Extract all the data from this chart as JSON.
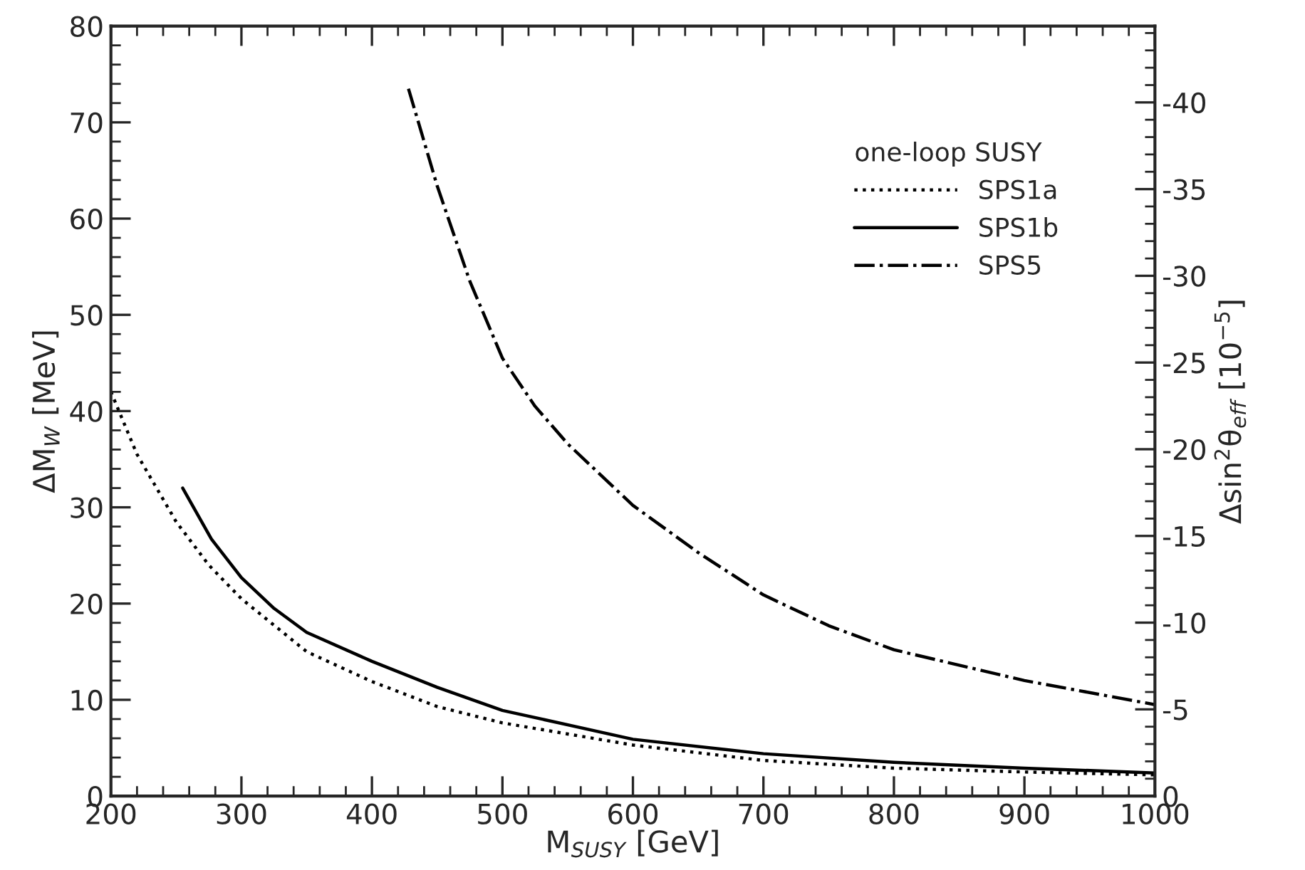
{
  "chart_data": {
    "type": "line",
    "xlabel": "M$_{SUSY}$ [GeV]",
    "ylabel": "ΔM$_{W}$ [MeV]",
    "y2label": "Δsin$^{2}$θ$_{eff}$ [10$^{−5}$]",
    "legend_title": "one-loop SUSY",
    "legend": "top right",
    "grid": false,
    "xlim": [
      200,
      1000
    ],
    "ylim": [
      0,
      80
    ],
    "y2lim": [
      0,
      -44.4
    ],
    "xticks": [
      200,
      {
        "value": 220,
        "label": null
      },
      {
        "value": 240,
        "label": null
      },
      {
        "value": 260,
        "label": null
      },
      {
        "value": 280,
        "label": null
      },
      300,
      {
        "value": 320,
        "label": null
      },
      {
        "value": 340,
        "label": null
      },
      {
        "value": 360,
        "label": null
      },
      {
        "value": 380,
        "label": null
      },
      400,
      {
        "value": 420,
        "label": null
      },
      {
        "value": 440,
        "label": null
      },
      {
        "value": 460,
        "label": null
      },
      {
        "value": 480,
        "label": null
      },
      500,
      {
        "value": 520,
        "label": null
      },
      {
        "value": 540,
        "label": null
      },
      {
        "value": 560,
        "label": null
      },
      {
        "value": 580,
        "label": null
      },
      600,
      {
        "value": 620,
        "label": null
      },
      {
        "value": 640,
        "label": null
      },
      {
        "value": 660,
        "label": null
      },
      {
        "value": 680,
        "label": null
      },
      700,
      {
        "value": 720,
        "label": null
      },
      {
        "value": 740,
        "label": null
      },
      {
        "value": 760,
        "label": null
      },
      {
        "value": 780,
        "label": null
      },
      800,
      {
        "value": 820,
        "label": null
      },
      {
        "value": 840,
        "label": null
      },
      {
        "value": 860,
        "label": null
      },
      {
        "value": 880,
        "label": null
      },
      900,
      {
        "value": 920,
        "label": null
      },
      {
        "value": 940,
        "label": null
      },
      {
        "value": 960,
        "label": null
      },
      {
        "value": 980,
        "label": null
      },
      1000
    ],
    "yticks": [
      0,
      {
        "value": 2,
        "label": null
      },
      {
        "value": 4,
        "label": null
      },
      {
        "value": 6,
        "label": null
      },
      {
        "value": 8,
        "label": null
      },
      10,
      {
        "value": 12,
        "label": null
      },
      {
        "value": 14,
        "label": null
      },
      {
        "value": 16,
        "label": null
      },
      {
        "value": 18,
        "label": null
      },
      20,
      {
        "value": 22,
        "label": null
      },
      {
        "value": 24,
        "label": null
      },
      {
        "value": 26,
        "label": null
      },
      {
        "value": 28,
        "label": null
      },
      30,
      {
        "value": 32,
        "label": null
      },
      {
        "value": 34,
        "label": null
      },
      {
        "value": 36,
        "label": null
      },
      {
        "value": 38,
        "label": null
      },
      40,
      {
        "value": 42,
        "label": null
      },
      {
        "value": 44,
        "label": null
      },
      {
        "value": 46,
        "label": null
      },
      {
        "value": 48,
        "label": null
      },
      50,
      {
        "value": 52,
        "label": null
      },
      {
        "value": 54,
        "label": null
      },
      {
        "value": 56,
        "label": null
      },
      {
        "value": 58,
        "label": null
      },
      60,
      {
        "value": 62,
        "label": null
      },
      {
        "value": 64,
        "label": null
      },
      {
        "value": 66,
        "label": null
      },
      {
        "value": 68,
        "label": null
      },
      70,
      {
        "value": 72,
        "label": null
      },
      {
        "value": 74,
        "label": null
      },
      {
        "value": 76,
        "label": null
      },
      {
        "value": 78,
        "label": null
      },
      80
    ],
    "y2ticks": [
      0,
      {
        "value": -1,
        "label": null
      },
      {
        "value": -2,
        "label": null
      },
      {
        "value": -3,
        "label": null
      },
      {
        "value": -4,
        "label": null
      },
      -5,
      {
        "value": -6,
        "label": null
      },
      {
        "value": -7,
        "label": null
      },
      {
        "value": -8,
        "label": null
      },
      {
        "value": -9,
        "label": null
      },
      -10,
      {
        "value": -11,
        "label": null
      },
      {
        "value": -12,
        "label": null
      },
      {
        "value": -13,
        "label": null
      },
      {
        "value": -14,
        "label": null
      },
      -15,
      {
        "value": -16,
        "label": null
      },
      {
        "value": -17,
        "label": null
      },
      {
        "value": -18,
        "label": null
      },
      {
        "value": -19,
        "label": null
      },
      -20,
      {
        "value": -21,
        "label": null
      },
      {
        "value": -22,
        "label": null
      },
      {
        "value": -23,
        "label": null
      },
      {
        "value": -24,
        "label": null
      },
      -25,
      {
        "value": -26,
        "label": null
      },
      {
        "value": -27,
        "label": null
      },
      {
        "value": -28,
        "label": null
      },
      {
        "value": -29,
        "label": null
      },
      -30,
      {
        "value": -31,
        "label": null
      },
      {
        "value": -32,
        "label": null
      },
      {
        "value": -33,
        "label": null
      },
      {
        "value": -34,
        "label": null
      },
      -35,
      {
        "value": -36,
        "label": null
      },
      {
        "value": -37,
        "label": null
      },
      {
        "value": -38,
        "label": null
      },
      {
        "value": -39,
        "label": null
      },
      -40,
      {
        "value": -41,
        "label": null
      },
      {
        "value": -42,
        "label": null
      },
      {
        "value": -43,
        "label": null
      },
      {
        "value": -44,
        "label": null
      }
    ],
    "series": [
      {
        "name": "SPS1a",
        "color": "#000000",
        "line_style": "dotted",
        "x": [
          200,
          220,
          250,
          275,
          300,
          350,
          400,
          450,
          500,
          600,
          700,
          800,
          900,
          1000
        ],
        "values": [
          42,
          35.5,
          28.5,
          24,
          20.5,
          15,
          11.9,
          9.3,
          7.6,
          5.3,
          3.7,
          2.9,
          2.5,
          2.2
        ]
      },
      {
        "name": "SPS1b",
        "color": "#000000",
        "line_style": "solid",
        "x": [
          255,
          277,
          300,
          325,
          350,
          400,
          450,
          500,
          600,
          700,
          800,
          900,
          1000
        ],
        "values": [
          32,
          26.7,
          22.7,
          19.5,
          17,
          14,
          11.3,
          8.9,
          5.9,
          4.4,
          3.5,
          2.9,
          2.4
        ]
      },
      {
        "name": "SPS5",
        "color": "#000000",
        "line_style": "dashdot",
        "x": [
          428,
          450,
          475,
          500,
          525,
          550,
          600,
          650,
          700,
          750,
          800,
          900,
          1000
        ],
        "values": [
          73.5,
          63.4,
          53.5,
          45.5,
          40.5,
          36.6,
          30.2,
          25.3,
          20.9,
          17.7,
          15.2,
          12.0,
          9.5
        ]
      }
    ]
  }
}
